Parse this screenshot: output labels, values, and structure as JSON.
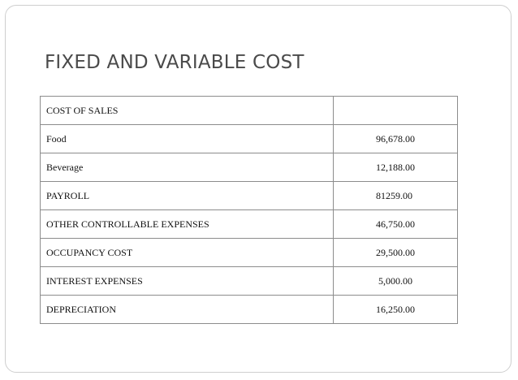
{
  "slide": {
    "title": "FIXED AND VARIABLE COST"
  },
  "table": {
    "rows": [
      {
        "label": "COST OF SALES",
        "value": ""
      },
      {
        "label": "Food",
        "value": "96,678.00"
      },
      {
        "label": "Beverage",
        "value": "12,188.00"
      },
      {
        "label": "PAYROLL",
        "value": "81259.00"
      },
      {
        "label": "OTHER CONTROLLABLE EXPENSES",
        "value": "46,750.00"
      },
      {
        "label": "OCCUPANCY COST",
        "value": "29,500.00"
      },
      {
        "label": "INTEREST EXPENSES",
        "value": "5,000.00"
      },
      {
        "label": "DEPRECIATION",
        "value": "16,250.00"
      }
    ]
  }
}
